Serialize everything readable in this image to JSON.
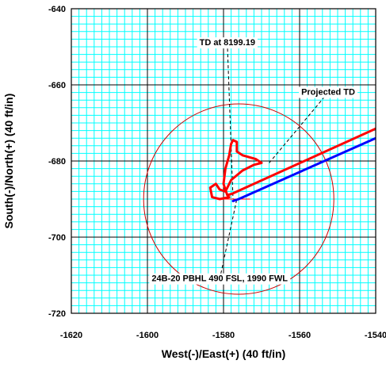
{
  "chart_data": {
    "type": "line",
    "title": "",
    "xlabel": "West(-)/East(+) (40 ft/in)",
    "ylabel": "South(-)/North(+) (40 ft/in)",
    "xlim": [
      -1620,
      -1540
    ],
    "ylim": [
      -720,
      -640
    ],
    "x_major_step": 20,
    "y_major_step": 20,
    "x_minor_step": 2,
    "y_minor_step": 2,
    "x_ticks": [
      "-1620",
      "-1600",
      "-1580",
      "-1560",
      "-1540"
    ],
    "y_ticks": [
      "-640",
      "-660",
      "-680",
      "-700",
      "-720"
    ],
    "grid": true,
    "colors": {
      "minor_grid": "#00ffff",
      "major_grid": "#000000",
      "actual_path": "#ff0000",
      "planned_path": "#0000ff",
      "target_circle": "#cc0000",
      "guide_lines": "#000000"
    },
    "series": [
      {
        "values": [
          {
            "x": -1532,
            "y": -668
          },
          {
            "x": -1540,
            "y": -671.5
          },
          {
            "x": -1577.5,
            "y": -688.5
          },
          {
            "x": -1579,
            "y": -689
          },
          {
            "x": -1580,
            "y": -686
          },
          {
            "x": -1579.5,
            "y": -682
          },
          {
            "x": -1578.5,
            "y": -678.5
          },
          {
            "x": -1578,
            "y": -675.5
          },
          {
            "x": -1577.5,
            "y": -674.5
          },
          {
            "x": -1576.5,
            "y": -675
          },
          {
            "x": -1576.5,
            "y": -677.5
          },
          {
            "x": -1575,
            "y": -678.5
          },
          {
            "x": -1571.5,
            "y": -679.5
          },
          {
            "x": -1570,
            "y": -680.5
          },
          {
            "x": -1572,
            "y": -681
          },
          {
            "x": -1575,
            "y": -682.5
          },
          {
            "x": -1578,
            "y": -685
          },
          {
            "x": -1579.5,
            "y": -688
          },
          {
            "x": -1581,
            "y": -687.5
          },
          {
            "x": -1582,
            "y": -686
          },
          {
            "x": -1583.5,
            "y": -687
          },
          {
            "x": -1583,
            "y": -689.5
          },
          {
            "x": -1581,
            "y": -690
          },
          {
            "x": -1578.5,
            "y": -689.5
          }
        ]
      },
      {
        "values": [
          {
            "x": -1532,
            "y": -670.5
          },
          {
            "x": -1540,
            "y": -674
          },
          {
            "x": -1576,
            "y": -690
          },
          {
            "x": -1577.5,
            "y": -690.5
          }
        ]
      }
    ],
    "target_circle": {
      "center": {
        "x": -1576,
        "y": -690
      },
      "radius": 25
    },
    "target_crosshair": [
      {
        "x": -1581,
        "y": -690
      },
      {
        "x": -1573,
        "y": -690
      }
    ],
    "annotations": [
      {
        "text": "TD at 8199.19",
        "point": {
          "x": -1577.5,
          "y": -690
        },
        "leader_start": {
          "x": -1579,
          "y": -649
        }
      },
      {
        "text": "Projected TD",
        "point": {
          "x": -1568,
          "y": -680.5
        },
        "leader_start": {
          "x": -1552.5,
          "y": -662
        }
      },
      {
        "text": "24B-20 PBHL 490 FSL, 1990 FWL",
        "point": {
          "x": -1576.5,
          "y": -690
        },
        "leader_start": {
          "x": -1581,
          "y": -711
        }
      }
    ]
  }
}
